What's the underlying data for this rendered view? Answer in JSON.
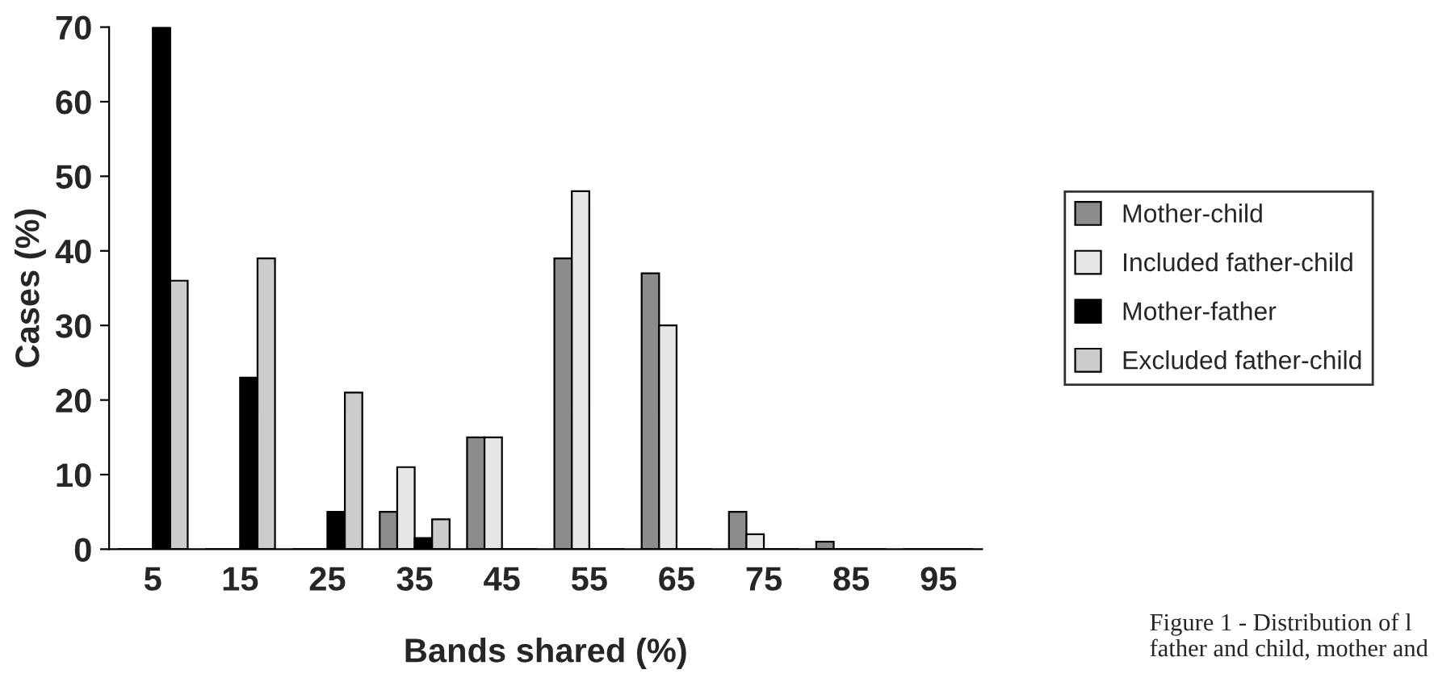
{
  "chart_data": {
    "type": "bar",
    "xlabel": "Bands shared (%)",
    "ylabel": "Cases (%)",
    "categories": [
      "5",
      "15",
      "25",
      "35",
      "45",
      "55",
      "65",
      "75",
      "85",
      "95"
    ],
    "series": [
      {
        "name": "Mother-child",
        "color": "#8c8c8c",
        "values": [
          0,
          0,
          0,
          5,
          15,
          39,
          37,
          5,
          1,
          0
        ]
      },
      {
        "name": "Included father-child",
        "color": "#e6e6e6",
        "values": [
          0,
          0,
          0,
          11,
          15,
          48,
          30,
          2,
          0,
          0
        ]
      },
      {
        "name": "Mother-father",
        "color": "#000000",
        "values": [
          70,
          23,
          5,
          1.5,
          0,
          0,
          0,
          0,
          0,
          0
        ]
      },
      {
        "name": "Excluded father-child",
        "color": "#cccccc",
        "values": [
          36,
          39,
          21,
          4,
          0,
          0,
          0,
          0,
          0,
          0
        ]
      }
    ],
    "ylim": [
      0,
      70
    ],
    "yticks": [
      0,
      10,
      20,
      30,
      40,
      50,
      60,
      70
    ],
    "grid": false,
    "legend": "right",
    "annotations": [
      "Figure 1 - Distribution of l\nfather and child, mother and"
    ]
  }
}
